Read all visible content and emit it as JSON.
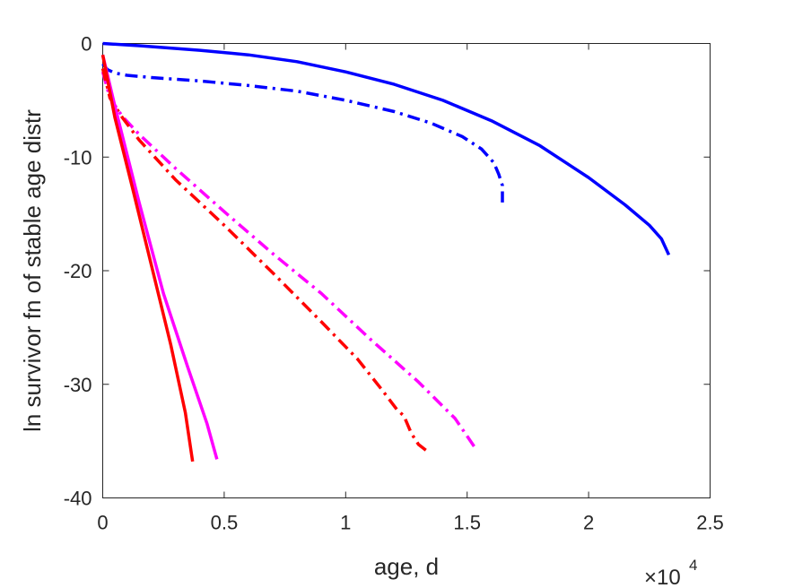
{
  "chart_data": {
    "type": "line",
    "title": "",
    "xlabel": "age, d",
    "ylabel": "ln survivor fn of stable age distr",
    "xlim": [
      0,
      25000
    ],
    "ylim": [
      -40,
      0
    ],
    "x_exponent_label": "×10",
    "x_exponent_power": "4",
    "grid": false,
    "legend": "none",
    "x_ticks": [
      0,
      5000,
      10000,
      15000,
      20000,
      25000
    ],
    "x_tick_labels": [
      "0",
      "0.5",
      "1",
      "1.5",
      "2",
      "2.5"
    ],
    "y_ticks": [
      0,
      -10,
      -20,
      -30,
      -40
    ],
    "y_tick_labels": [
      "0",
      "-10",
      "-20",
      "-30",
      "-40"
    ],
    "series": [
      {
        "color": "#0000ff",
        "style": "solid",
        "x": [
          0,
          1500,
          4000,
          6000,
          8000,
          10000,
          12000,
          14000,
          16000,
          18000,
          20000,
          21500,
          22500,
          23000,
          23300
        ],
        "y": [
          0,
          -0.2,
          -0.6,
          -1.0,
          -1.6,
          -2.5,
          -3.6,
          -5.0,
          -6.8,
          -9.0,
          -11.8,
          -14.2,
          -16.0,
          -17.2,
          -18.6
        ]
      },
      {
        "color": "#0000ff",
        "style": "dashdot",
        "x": [
          0,
          200,
          500,
          1000,
          2000,
          4000,
          6000,
          8000,
          10000,
          12000,
          13500,
          14800,
          15600,
          16100,
          16300,
          16450,
          16450
        ],
        "y": [
          -1.8,
          -2.3,
          -2.6,
          -2.8,
          -3.0,
          -3.3,
          -3.7,
          -4.2,
          -5.0,
          -6.0,
          -7.0,
          -8.2,
          -9.3,
          -10.5,
          -11.5,
          -12.5,
          -14.0
        ]
      },
      {
        "color": "#ff00ff",
        "style": "dashdot",
        "x": [
          0,
          300,
          800,
          1500,
          3000,
          5000,
          7000,
          9000,
          11000,
          13000,
          14500,
          15300
        ],
        "y": [
          -2.5,
          -4.8,
          -6.4,
          -8.0,
          -11.0,
          -14.8,
          -18.5,
          -22.0,
          -26.0,
          -29.8,
          -33.0,
          -35.5
        ]
      },
      {
        "color": "#ff0000",
        "style": "dashdot",
        "x": [
          0,
          300,
          800,
          1500,
          3000,
          5000,
          7000,
          9000,
          10500,
          11500,
          12100,
          12400,
          12700,
          13000,
          13300
        ],
        "y": [
          -2.2,
          -4.8,
          -6.5,
          -8.5,
          -12.0,
          -16.0,
          -20.2,
          -24.5,
          -27.8,
          -30.5,
          -32.2,
          -32.8,
          -34.3,
          -35.3,
          -35.8
        ]
      },
      {
        "color": "#ff00ff",
        "style": "solid",
        "x": [
          0,
          500,
          1500,
          2500,
          3500,
          4300,
          4700
        ],
        "y": [
          -1.0,
          -5.5,
          -14.0,
          -22.0,
          -28.5,
          -33.5,
          -36.6
        ]
      },
      {
        "color": "#ff0000",
        "style": "solid",
        "x": [
          0,
          500,
          1200,
          2000,
          2800,
          3400,
          3700
        ],
        "y": [
          -1.0,
          -6.5,
          -12.5,
          -19.5,
          -26.5,
          -32.5,
          -36.8
        ]
      }
    ]
  }
}
